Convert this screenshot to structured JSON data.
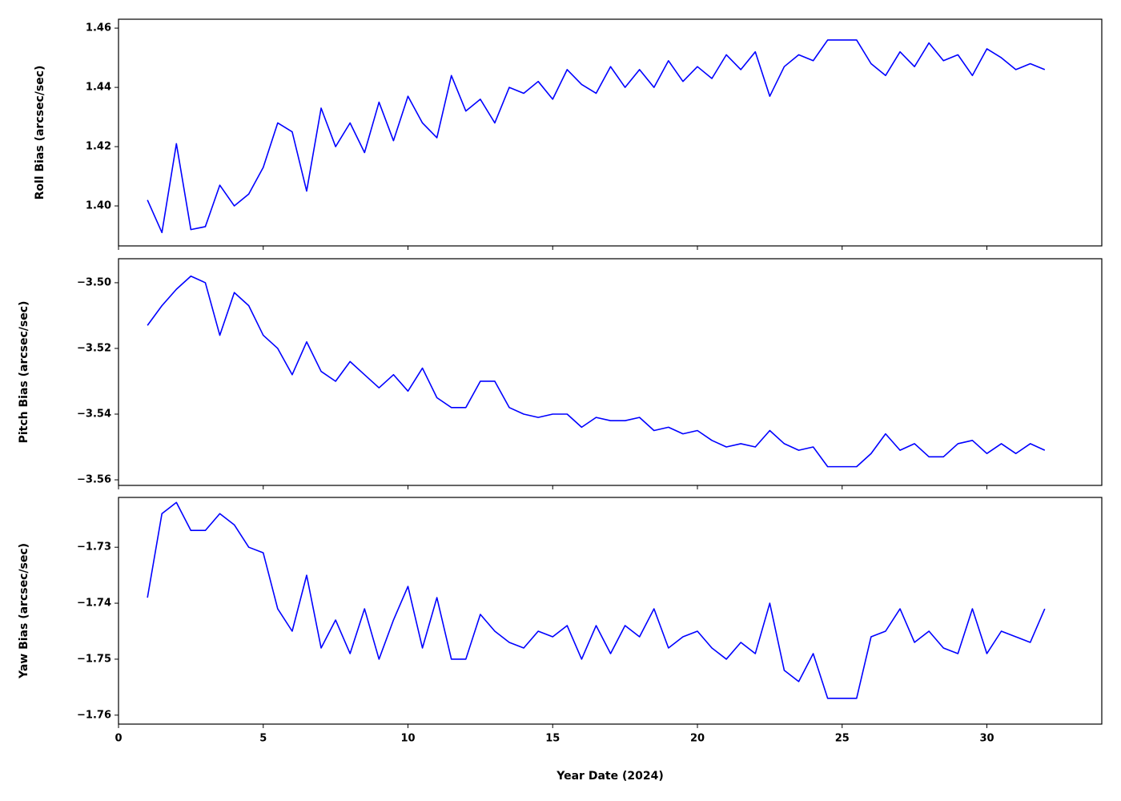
{
  "chart_data": [
    {
      "type": "line",
      "y_label": "Roll Bias (arcsec/sec)",
      "color": "#0000ff",
      "x": [
        1,
        1.5,
        2,
        2.5,
        3,
        3.5,
        4,
        4.5,
        5,
        5.5,
        6,
        6.5,
        7,
        7.5,
        8,
        8.5,
        9,
        9.5,
        10,
        10.5,
        11,
        11.5,
        12,
        12.5,
        13,
        13.5,
        14,
        14.5,
        15,
        15.5,
        16,
        16.5,
        17,
        17.5,
        18,
        18.5,
        19,
        19.5,
        20,
        20.5,
        21,
        21.5,
        22,
        22.5,
        23,
        23.5,
        24,
        24.5,
        25,
        25.5,
        26,
        26.5,
        27,
        27.5,
        28,
        28.5,
        29,
        29.5,
        30,
        30.5,
        31,
        31.5,
        32
      ],
      "values": [
        1.402,
        1.391,
        1.421,
        1.392,
        1.393,
        1.407,
        1.4,
        1.404,
        1.413,
        1.428,
        1.425,
        1.405,
        1.433,
        1.42,
        1.428,
        1.418,
        1.435,
        1.422,
        1.437,
        1.428,
        1.423,
        1.444,
        1.432,
        1.436,
        1.428,
        1.44,
        1.438,
        1.442,
        1.436,
        1.446,
        1.441,
        1.438,
        1.447,
        1.44,
        1.446,
        1.44,
        1.449,
        1.442,
        1.447,
        1.443,
        1.451,
        1.446,
        1.452,
        1.437,
        1.447,
        1.451,
        1.449,
        1.456,
        1.456,
        1.456,
        1.448,
        1.444,
        1.452,
        1.447,
        1.455,
        1.449,
        1.451,
        1.444,
        1.453,
        1.45,
        1.446,
        1.448,
        1.446
      ],
      "xlim": [
        0,
        33.97
      ],
      "xticks": [
        0,
        5,
        10,
        15,
        20,
        25,
        30
      ],
      "ylim": [
        1.3865,
        1.463
      ],
      "yticks": [
        {
          "value": 1.4,
          "label": "1.40"
        },
        1.42,
        1.44,
        1.46
      ]
    },
    {
      "type": "line",
      "y_label": "Pitch Bias (arcsec/sec)",
      "color": "#0000ff",
      "x": [
        1,
        1.5,
        2,
        2.5,
        3,
        3.5,
        4,
        4.5,
        5,
        5.5,
        6,
        6.5,
        7,
        7.5,
        8,
        8.5,
        9,
        9.5,
        10,
        10.5,
        11,
        11.5,
        12,
        12.5,
        13,
        13.5,
        14,
        14.5,
        15,
        15.5,
        16,
        16.5,
        17,
        17.5,
        18,
        18.5,
        19,
        19.5,
        20,
        20.5,
        21,
        21.5,
        22,
        22.5,
        23,
        23.5,
        24,
        24.5,
        25,
        25.5,
        26,
        26.5,
        27,
        27.5,
        28,
        28.5,
        29,
        29.5,
        30,
        30.5,
        31,
        31.5,
        32
      ],
      "values": [
        -3.513,
        -3.507,
        -3.502,
        -3.498,
        -3.5,
        -3.516,
        -3.503,
        -3.507,
        -3.516,
        -3.52,
        -3.528,
        -3.518,
        -3.527,
        -3.53,
        -3.524,
        -3.528,
        -3.532,
        -3.528,
        -3.533,
        -3.526,
        -3.535,
        -3.538,
        -3.538,
        -3.53,
        -3.53,
        -3.538,
        -3.54,
        -3.541,
        -3.54,
        -3.54,
        -3.544,
        -3.541,
        -3.542,
        -3.542,
        -3.541,
        -3.545,
        -3.544,
        -3.546,
        -3.545,
        -3.548,
        -3.55,
        -3.549,
        -3.55,
        -3.545,
        -3.549,
        -3.551,
        -3.55,
        -3.556,
        -3.556,
        -3.556,
        -3.552,
        -3.546,
        -3.551,
        -3.549,
        -3.553,
        -3.553,
        -3.549,
        -3.548,
        -3.552,
        -3.549,
        -3.552,
        -3.549,
        -3.551
      ],
      "xlim": [
        0,
        33.97
      ],
      "xticks": [
        0,
        5,
        10,
        15,
        20,
        25,
        30
      ],
      "ylim": [
        -3.5617,
        -3.4927
      ],
      "yticks": [
        {
          "value": -3.56,
          "label": "−3.56"
        },
        {
          "value": -3.54,
          "label": "−3.54"
        },
        {
          "value": -3.52,
          "label": "−3.52"
        },
        {
          "value": -3.5,
          "label": "−3.50"
        }
      ]
    },
    {
      "type": "line",
      "y_label": "Yaw Bias (arcsec/sec)",
      "x_label": "Year Date (2024)",
      "color": "#0000ff",
      "x": [
        1,
        1.5,
        2,
        2.5,
        3,
        3.5,
        4,
        4.5,
        5,
        5.5,
        6,
        6.5,
        7,
        7.5,
        8,
        8.5,
        9,
        9.5,
        10,
        10.5,
        11,
        11.5,
        12,
        12.5,
        13,
        13.5,
        14,
        14.5,
        15,
        15.5,
        16,
        16.5,
        17,
        17.5,
        18,
        18.5,
        19,
        19.5,
        20,
        20.5,
        21,
        21.5,
        22,
        22.5,
        23,
        23.5,
        24,
        24.5,
        25,
        25.5,
        26,
        26.5,
        27,
        27.5,
        28,
        28.5,
        29,
        29.5,
        30,
        30.5,
        31,
        31.5,
        32
      ],
      "values": [
        -1.739,
        -1.724,
        -1.722,
        -1.727,
        -1.727,
        -1.724,
        -1.726,
        -1.73,
        -1.731,
        -1.741,
        -1.745,
        -1.735,
        -1.748,
        -1.743,
        -1.749,
        -1.741,
        -1.75,
        -1.743,
        -1.737,
        -1.748,
        -1.739,
        -1.75,
        -1.75,
        -1.742,
        -1.745,
        -1.747,
        -1.748,
        -1.745,
        -1.746,
        -1.744,
        -1.75,
        -1.744,
        -1.749,
        -1.744,
        -1.746,
        -1.741,
        -1.748,
        -1.746,
        -1.745,
        -1.748,
        -1.75,
        -1.747,
        -1.749,
        -1.74,
        -1.752,
        -1.754,
        -1.749,
        -1.757,
        -1.757,
        -1.757,
        -1.746,
        -1.745,
        -1.741,
        -1.747,
        -1.745,
        -1.748,
        -1.749,
        -1.741,
        -1.749,
        -1.745,
        -1.746,
        -1.747,
        -1.741
      ],
      "xlim": [
        0,
        33.97
      ],
      "xticks": [
        0,
        5,
        10,
        15,
        20,
        25,
        30
      ],
      "ylim": [
        -1.7616,
        -1.7211
      ],
      "yticks": [
        {
          "value": -1.76,
          "label": "−1.76"
        },
        {
          "value": -1.75,
          "label": "−1.75"
        },
        {
          "value": -1.74,
          "label": "−1.74"
        },
        {
          "value": -1.73,
          "label": "−1.73"
        }
      ]
    }
  ]
}
